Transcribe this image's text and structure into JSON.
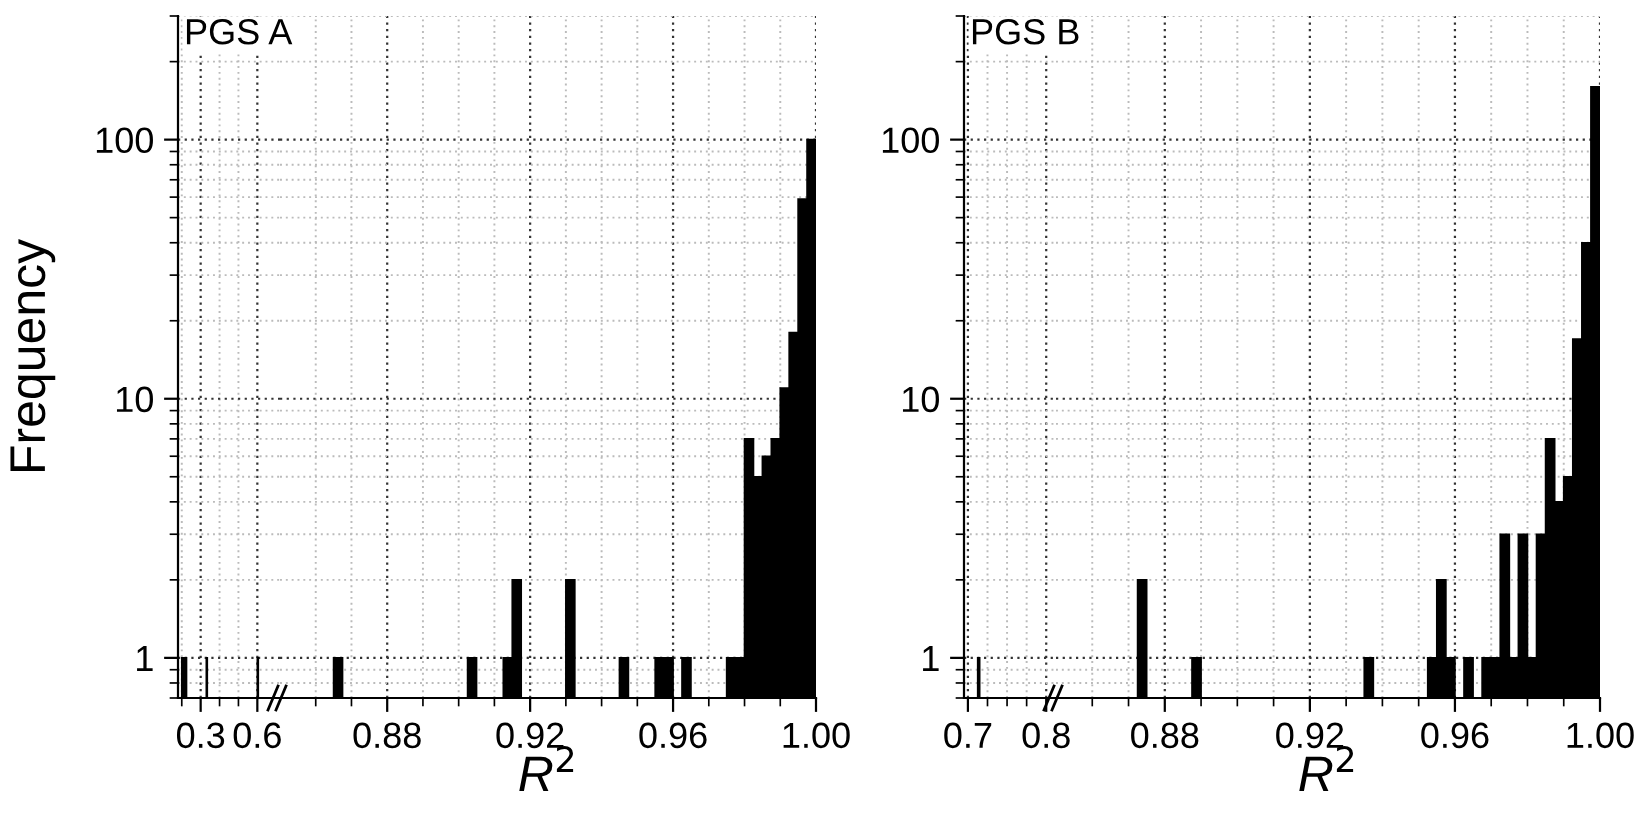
{
  "chart_data": [
    {
      "type": "histogram",
      "color": "#000000",
      "bins": [
        0.2,
        0.225,
        0.33,
        0.335,
        0.6,
        0.605
      ],
      "values": [
        1,
        null,
        1,
        null,
        1
      ],
      "xlim": [
        0.18,
        0.72
      ],
      "xticks": [
        {
          "value": 0.2,
          "label": null
        },
        {
          "value": 0.3,
          "label": "0.3"
        },
        {
          "value": 0.4,
          "label": null
        },
        {
          "value": 0.5,
          "label": null
        },
        {
          "value": 0.6,
          "label": "0.6"
        }
      ],
      "ylim": [
        0.7,
        300
      ],
      "yticks": [
        1,
        10,
        100
      ],
      "log": true,
      "grid": true,
      "ylabel": "Frequency",
      "annotations": [
        "PGS A"
      ]
    },
    {
      "type": "histogram",
      "color": "#000000",
      "bins": [
        0.85,
        0.8525,
        0.855,
        0.8575,
        0.86,
        0.8625,
        0.865,
        0.8675,
        0.87,
        0.8725,
        0.875,
        0.8775,
        0.88,
        0.8825,
        0.885,
        0.8875,
        0.89,
        0.8925,
        0.895,
        0.8975,
        0.9,
        0.9025,
        0.905,
        0.9075,
        0.91,
        0.9125,
        0.915,
        0.9175,
        0.92,
        0.9225,
        0.925,
        0.9275,
        0.93,
        0.9325,
        0.935,
        0.9375,
        0.94,
        0.9425,
        0.945,
        0.9475,
        0.95,
        0.9525,
        0.955,
        0.9575,
        0.96,
        0.9625,
        0.965,
        0.9675,
        0.97,
        0.9725,
        0.975,
        0.9775,
        0.98,
        0.9825,
        0.985,
        0.9875,
        0.99,
        0.9925,
        0.995,
        0.9975,
        1.0
      ],
      "values": [
        null,
        null,
        null,
        null,
        null,
        null,
        1,
        null,
        null,
        null,
        null,
        null,
        null,
        null,
        null,
        null,
        null,
        null,
        null,
        null,
        null,
        1,
        null,
        null,
        null,
        1,
        2,
        null,
        null,
        null,
        null,
        null,
        2,
        null,
        null,
        null,
        null,
        null,
        1,
        null,
        null,
        null,
        1,
        1,
        null,
        1,
        null,
        null,
        null,
        null,
        1,
        1,
        7,
        5,
        6,
        7,
        11,
        18,
        59,
        100
      ],
      "xlim": [
        0.85,
        1.0
      ],
      "xticks": [
        {
          "value": 0.86,
          "label": null
        },
        {
          "value": 0.87,
          "label": null
        },
        0.88,
        {
          "value": 0.89,
          "label": null
        },
        {
          "value": 0.9,
          "label": null
        },
        {
          "value": 0.91,
          "label": null
        },
        0.92,
        {
          "value": 0.93,
          "label": null
        },
        {
          "value": 0.94,
          "label": null
        },
        {
          "value": 0.95,
          "label": null
        },
        0.96,
        {
          "value": 0.97,
          "label": null
        },
        {
          "value": 0.98,
          "label": null
        },
        {
          "value": 0.99,
          "label": null
        },
        {
          "value": 1.0,
          "label": "1.00"
        }
      ],
      "ylim": [
        0.7,
        300
      ],
      "yticks": [
        1,
        10,
        100
      ],
      "log": true,
      "grid": true,
      "tick_labels": "x",
      "xlabel": "R$^{2}$"
    },
    {
      "type": "histogram",
      "color": "#000000",
      "bins": [
        0.7125,
        0.715
      ],
      "values": [
        1
      ],
      "xlim": [
        0.695,
        0.8125
      ],
      "xticks": [
        {
          "value": 0.7,
          "label": "0.7"
        },
        {
          "value": 0.725,
          "label": null
        },
        {
          "value": 0.75,
          "label": null
        },
        {
          "value": 0.775,
          "label": null
        },
        {
          "value": 0.8,
          "label": "0.8"
        }
      ],
      "ylim": [
        0.7,
        300
      ],
      "yticks": [
        1,
        10,
        100
      ],
      "log": true,
      "grid": true,
      "annotations": [
        "PGS B"
      ]
    },
    {
      "type": "histogram",
      "color": "#000000",
      "bins": [
        0.85,
        0.8525,
        0.855,
        0.8575,
        0.86,
        0.8625,
        0.865,
        0.8675,
        0.87,
        0.8725,
        0.875,
        0.8775,
        0.88,
        0.8825,
        0.885,
        0.8875,
        0.89,
        0.8925,
        0.895,
        0.8975,
        0.9,
        0.9025,
        0.905,
        0.9075,
        0.91,
        0.9125,
        0.915,
        0.9175,
        0.92,
        0.9225,
        0.925,
        0.9275,
        0.93,
        0.9325,
        0.935,
        0.9375,
        0.94,
        0.9425,
        0.945,
        0.9475,
        0.95,
        0.9525,
        0.955,
        0.9575,
        0.96,
        0.9625,
        0.965,
        0.9675,
        0.97,
        0.9725,
        0.975,
        0.9775,
        0.98,
        0.9825,
        0.985,
        0.9875,
        0.99,
        0.9925,
        0.995,
        0.9975,
        1.0
      ],
      "values": [
        null,
        null,
        null,
        null,
        null,
        null,
        null,
        null,
        null,
        2,
        null,
        null,
        null,
        null,
        null,
        1,
        null,
        null,
        null,
        null,
        null,
        null,
        null,
        null,
        null,
        null,
        null,
        null,
        null,
        null,
        null,
        null,
        null,
        null,
        1,
        null,
        null,
        null,
        null,
        null,
        null,
        1,
        2,
        1,
        null,
        1,
        null,
        1,
        1,
        3,
        1,
        3,
        1,
        3,
        7,
        4,
        5,
        17,
        40,
        160
      ],
      "xlim": [
        0.85,
        1.0
      ],
      "xticks": [
        {
          "value": 0.86,
          "label": null
        },
        {
          "value": 0.87,
          "label": null
        },
        0.88,
        {
          "value": 0.89,
          "label": null
        },
        {
          "value": 0.9,
          "label": null
        },
        {
          "value": 0.91,
          "label": null
        },
        0.92,
        {
          "value": 0.93,
          "label": null
        },
        {
          "value": 0.94,
          "label": null
        },
        {
          "value": 0.95,
          "label": null
        },
        0.96,
        {
          "value": 0.97,
          "label": null
        },
        {
          "value": 0.98,
          "label": null
        },
        {
          "value": 0.99,
          "label": null
        },
        {
          "value": 1.0,
          "label": "1.00"
        }
      ],
      "ylim": [
        0.7,
        300
      ],
      "yticks": [
        1,
        10,
        100
      ],
      "log": true,
      "grid": true,
      "tick_labels": "x",
      "xlabel": "R$^{2}$"
    }
  ]
}
